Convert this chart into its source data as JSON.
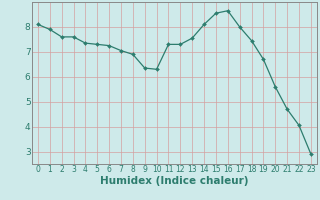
{
  "x": [
    0,
    1,
    2,
    3,
    4,
    5,
    6,
    7,
    8,
    9,
    10,
    11,
    12,
    13,
    14,
    15,
    16,
    17,
    18,
    19,
    20,
    21,
    22,
    23
  ],
  "y": [
    8.1,
    7.9,
    7.6,
    7.6,
    7.35,
    7.3,
    7.25,
    7.05,
    6.9,
    6.35,
    6.3,
    7.3,
    7.3,
    7.55,
    8.1,
    8.55,
    8.65,
    8.0,
    7.45,
    6.7,
    5.6,
    4.7,
    4.05,
    2.9
  ],
  "line_color": "#2d7d6e",
  "marker": "D",
  "marker_size": 2,
  "bg_color": "#ceeaea",
  "grid_color_h": "#d4a0a0",
  "grid_color_v": "#d4a0a0",
  "xlabel": "Humidex (Indice chaleur)",
  "xlim": [
    -0.5,
    23.5
  ],
  "ylim": [
    2.5,
    9.0
  ],
  "yticks": [
    3,
    4,
    5,
    6,
    7,
    8
  ],
  "xticks": [
    0,
    1,
    2,
    3,
    4,
    5,
    6,
    7,
    8,
    9,
    10,
    11,
    12,
    13,
    14,
    15,
    16,
    17,
    18,
    19,
    20,
    21,
    22,
    23
  ],
  "tick_color": "#2d7d6e",
  "xlabel_fontsize": 7.5,
  "xtick_fontsize": 5.5,
  "ytick_fontsize": 6.5,
  "axis_color": "#555555",
  "spine_color": "#888888"
}
